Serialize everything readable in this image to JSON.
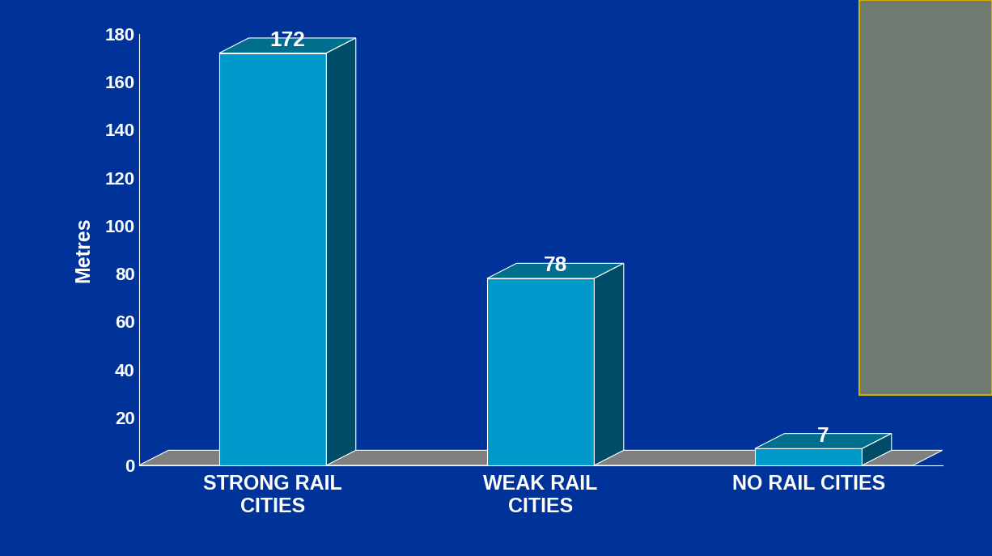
{
  "chart_data": {
    "type": "bar",
    "categories": [
      "STRONG RAIL CITIES",
      "WEAK RAIL CITIES",
      "NO RAIL CITIES"
    ],
    "values": [
      172,
      78,
      7
    ],
    "y_label": "Metres",
    "color": "#0099cc",
    "ylim": [
      0,
      180
    ],
    "yticks": [
      0,
      20,
      40,
      60,
      80,
      100,
      120,
      140,
      160,
      180
    ],
    "data_labels": true,
    "grid": false
  }
}
